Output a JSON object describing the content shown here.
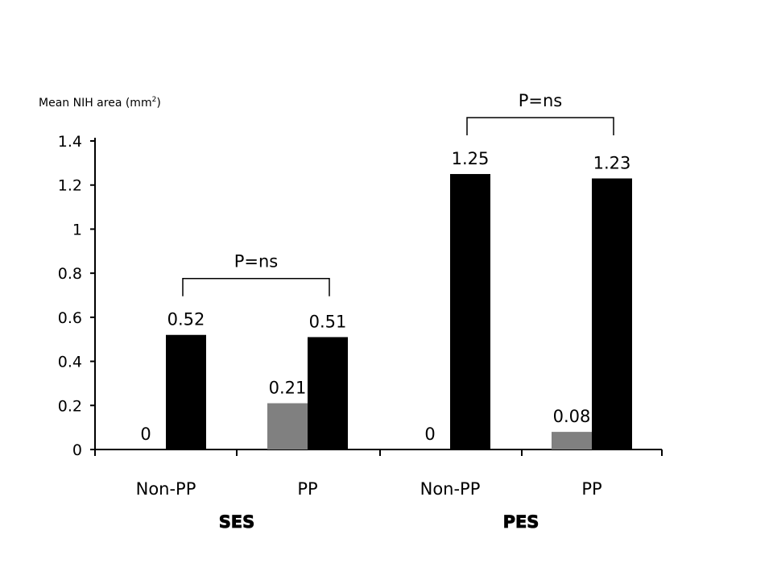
{
  "chart_data": {
    "type": "bar",
    "ylabel": "Mean NIH area (mm",
    "ylabel_sup": "2",
    "ylabel_suffix": ")",
    "ylim": [
      0,
      1.4
    ],
    "yticks": [
      "0",
      "0.2",
      "0.4",
      "0.6",
      "0.8",
      "1",
      "1.2",
      "1.4"
    ],
    "grid": false,
    "groups": [
      {
        "name": "SES",
        "categories": [
          {
            "label": "Non-PP",
            "bars": [
              {
                "value": 0,
                "label": "0",
                "color": "#808080"
              },
              {
                "value": 0.52,
                "label": "0.52",
                "color": "#000000"
              }
            ]
          },
          {
            "label": "PP",
            "bars": [
              {
                "value": 0.21,
                "label": "0.21",
                "color": "#808080"
              },
              {
                "value": 0.51,
                "label": "0.51",
                "color": "#000000"
              }
            ]
          }
        ],
        "comparison": "P=ns"
      },
      {
        "name": "PES",
        "categories": [
          {
            "label": "Non-PP",
            "bars": [
              {
                "value": 0,
                "label": "0",
                "color": "#808080"
              },
              {
                "value": 1.25,
                "label": "1.25",
                "color": "#000000"
              }
            ]
          },
          {
            "label": "PP",
            "bars": [
              {
                "value": 0.08,
                "label": "0.08",
                "color": "#808080"
              },
              {
                "value": 1.23,
                "label": "1.23",
                "color": "#000000"
              }
            ]
          }
        ],
        "comparison": "P=ns"
      }
    ]
  }
}
